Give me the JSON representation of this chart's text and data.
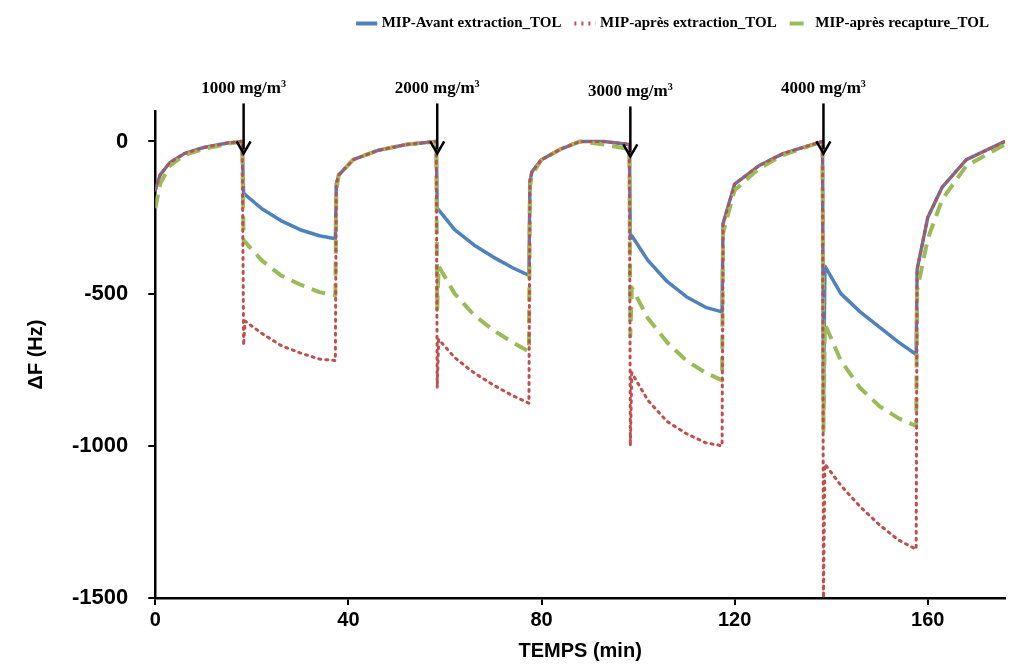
{
  "chart_data": {
    "type": "line",
    "xlabel": "TEMPS (min)",
    "ylabel": "ΔF (Hz)",
    "xlim": [
      0,
      176
    ],
    "xticks": [
      0,
      40,
      80,
      120,
      160
    ],
    "ylim": [
      -1500,
      100
    ],
    "yticks": [
      0,
      -500,
      -1000,
      -1500
    ],
    "grid": false,
    "legend": "top",
    "marker": "none",
    "x": [
      0,
      1,
      3,
      6,
      10,
      15,
      18,
      18.3,
      18.6,
      22,
      26,
      30,
      34,
      37.3,
      37.5,
      38,
      41,
      46,
      52,
      58.2,
      58.4,
      58.7,
      62,
      66,
      70,
      74,
      77.4,
      77.6,
      78,
      80,
      84,
      88,
      93,
      98.2,
      98.4,
      98.7,
      102,
      106,
      110,
      114,
      117.4,
      117.6,
      120,
      125,
      130,
      138.2,
      138.4,
      138.7,
      142,
      146,
      150,
      154,
      157.6,
      157.8,
      160,
      163,
      168,
      176
    ],
    "series": [
      {
        "name": "MIP-Avant extraction_TOL",
        "color": "#4f81bd",
        "line_style": "solid",
        "values": [
          -160,
          -110,
          -70,
          -40,
          -20,
          -5,
          0,
          -170,
          -175,
          -220,
          -260,
          -290,
          -310,
          -320,
          -140,
          -110,
          -60,
          -30,
          -10,
          0,
          -220,
          -225,
          -290,
          -340,
          -380,
          -415,
          -440,
          -130,
          -100,
          -60,
          -25,
          0,
          0,
          -10,
          -320,
          -310,
          -390,
          -460,
          -510,
          -545,
          -560,
          -270,
          -140,
          -80,
          -40,
          0,
          -860,
          -410,
          -500,
          -560,
          -610,
          -660,
          -700,
          -420,
          -250,
          -150,
          -60,
          0
        ]
      },
      {
        "name": "MIP-après extraction_TOL",
        "color": "#c0504d",
        "line_style": "dotted",
        "values": [
          -160,
          -110,
          -70,
          -40,
          -20,
          -5,
          0,
          -670,
          -590,
          -630,
          -670,
          -695,
          -715,
          -720,
          -140,
          -110,
          -60,
          -30,
          -10,
          0,
          -810,
          -650,
          -710,
          -760,
          -800,
          -835,
          -860,
          -130,
          -100,
          -60,
          -25,
          0,
          0,
          -10,
          -1000,
          -760,
          -850,
          -920,
          -960,
          -990,
          -1000,
          -270,
          -140,
          -80,
          -40,
          0,
          -1500,
          -1060,
          -1130,
          -1200,
          -1260,
          -1310,
          -1340,
          -420,
          -250,
          -150,
          -60,
          0
        ]
      },
      {
        "name": "MIP-après recapture_TOL",
        "color": "#9bbb59",
        "line_style": "dashed",
        "values": [
          -220,
          -140,
          -80,
          -45,
          -25,
          -8,
          0,
          -330,
          -330,
          -390,
          -440,
          -470,
          -495,
          -505,
          -160,
          -110,
          -60,
          -30,
          -10,
          0,
          -550,
          -410,
          -500,
          -570,
          -620,
          -660,
          -690,
          -150,
          -110,
          -60,
          -25,
          0,
          -10,
          -25,
          -640,
          -480,
          -580,
          -660,
          -720,
          -760,
          -785,
          -300,
          -160,
          -90,
          -45,
          0,
          -950,
          -600,
          -720,
          -810,
          -870,
          -910,
          -935,
          -490,
          -320,
          -190,
          -80,
          -10
        ]
      }
    ],
    "annotations": [
      {
        "text": "1000 mg/m$^{3}$",
        "x": 18.3,
        "y": 0
      },
      {
        "text": "2000 mg/m$^{3}$",
        "x": 58.4,
        "y": 0
      },
      {
        "text": "3000 mg/m$^{3}$",
        "x": 98.4,
        "y": -10
      },
      {
        "text": "4000 mg/m$^{3}$",
        "x": 138.4,
        "y": 0
      }
    ]
  }
}
